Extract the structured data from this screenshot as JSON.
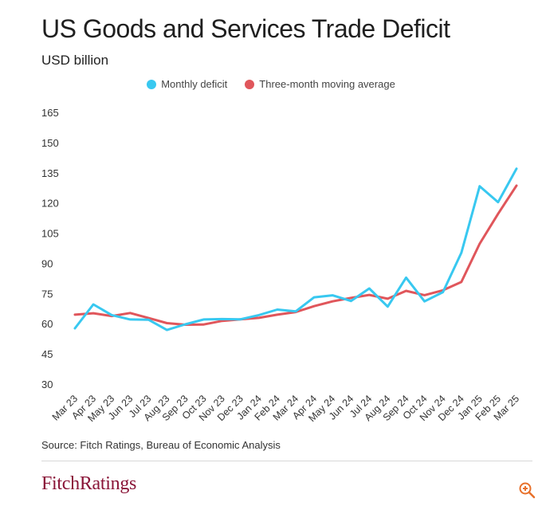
{
  "header": {
    "title": "US Goods and Services Trade Deficit",
    "subtitle": "USD billion"
  },
  "footer": {
    "source": "Source: Fitch Ratings, Bureau of Economic Analysis",
    "logo": "FitchRatings"
  },
  "colors": {
    "monthly": "#38c8f0",
    "average": "#e0565b",
    "logo": "#8a1538"
  },
  "chart_data": {
    "type": "line",
    "title": "US Goods and Services Trade Deficit",
    "ylabel": "USD billion",
    "xlabel": "",
    "ylim": [
      30,
      165
    ],
    "yticks": [
      30,
      45,
      60,
      75,
      90,
      105,
      120,
      135,
      150,
      165
    ],
    "grid": false,
    "legend_position": "top-center",
    "categories": [
      "Mar 23",
      "Apr 23",
      "May 23",
      "Jun 23",
      "Jul 23",
      "Aug 23",
      "Sep 23",
      "Oct 23",
      "Nov 23",
      "Dec 23",
      "Jan 24",
      "Feb 24",
      "Mar 24",
      "Apr 24",
      "May 24",
      "Jun 24",
      "Jul 24",
      "Aug 24",
      "Sep 24",
      "Oct 24",
      "Nov 24",
      "Dec 24",
      "Jan 25",
      "Feb 25",
      "Mar 25"
    ],
    "series": [
      {
        "name": "Monthly deficit",
        "color": "#38c8f0",
        "values": [
          57.7,
          69.6,
          64.3,
          62.1,
          62.0,
          56.9,
          59.7,
          62.1,
          62.3,
          62.2,
          64.3,
          67.0,
          66.1,
          73.1,
          74.1,
          71.3,
          77.5,
          68.5,
          82.9,
          71.1,
          75.7,
          95.2,
          128.3,
          120.4,
          137.0
        ]
      },
      {
        "name": "Three-month moving average",
        "color": "#e0565b",
        "values": [
          64.5,
          65.2,
          63.8,
          65.3,
          62.8,
          60.3,
          59.5,
          59.6,
          61.4,
          62.2,
          62.9,
          64.5,
          65.8,
          68.7,
          71.1,
          72.8,
          74.3,
          72.4,
          76.3,
          74.2,
          76.6,
          80.7,
          99.7,
          114.6,
          128.6
        ]
      }
    ]
  }
}
